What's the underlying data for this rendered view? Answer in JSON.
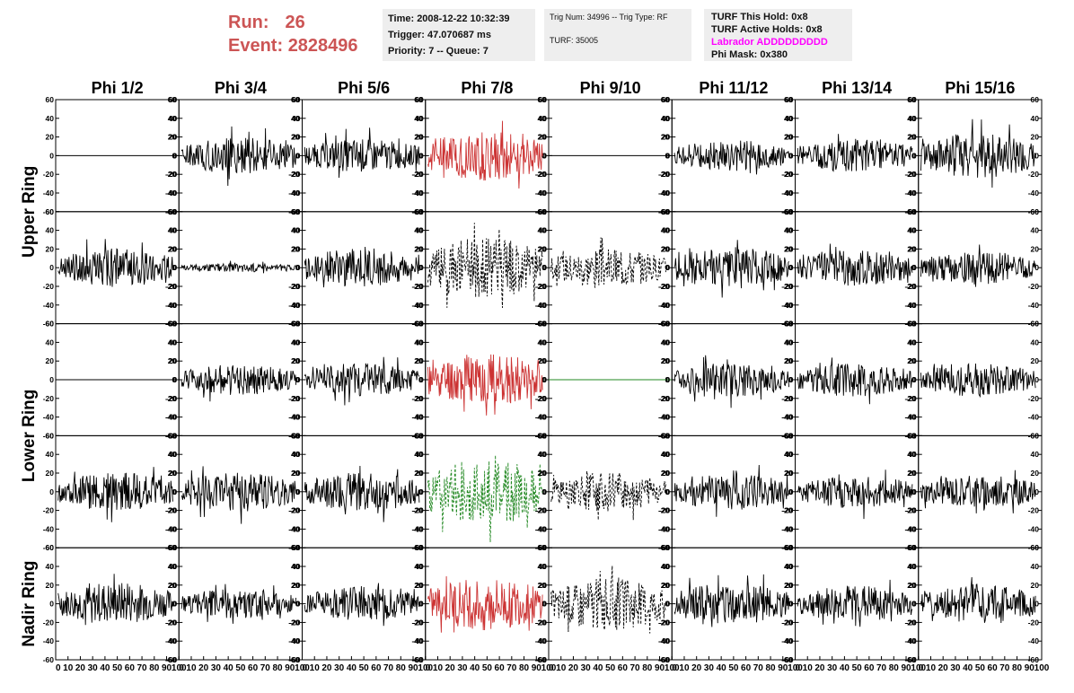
{
  "header": {
    "run_label": "Run:",
    "run_value": "26",
    "event_label": "Event:",
    "event_value": "2828496",
    "time": "Time: 2008-12-22 10:32:39",
    "trigger": "Trigger: 47.070687 ms",
    "priority": "Priority: 7 -- Queue: 7",
    "trig_num": "Trig Num: 34996 -- Trig Type: RF",
    "turf": "TURF: 35005",
    "turf_this_hold": "TURF This Hold: 0x8",
    "turf_active_holds": "TURF Active Holds: 0x8",
    "labrador": "Labrador ADDDDDDDDD",
    "phi_mask": "Phi Mask: 0x380"
  },
  "colors": {
    "header_red": "#cc5555",
    "labrador_magenta": "#ff00ff",
    "trace_black": "#000000",
    "trace_red": "#cc3333",
    "trace_green": "#228822",
    "box_bg": "#eeeeee"
  },
  "chart_data": {
    "type": "line",
    "layout": "grid",
    "columns": [
      "Phi 1/2",
      "Phi 3/4",
      "Phi 5/6",
      "Phi 7/8",
      "Phi 9/10",
      "Phi 11/12",
      "Phi 13/14",
      "Phi 15/16"
    ],
    "rows": [
      {
        "label": "Upper Ring",
        "sub_rows": 2
      },
      {
        "label": "Lower Ring",
        "sub_rows": 2
      },
      {
        "label": "Nadir Ring",
        "sub_rows": 1
      }
    ],
    "xlim": [
      0,
      100
    ],
    "ylim": [
      -60,
      60
    ],
    "x_tick_labels": [
      "0",
      "10",
      "20",
      "30",
      "40",
      "50",
      "60",
      "70",
      "80",
      "90",
      "100"
    ],
    "y_tick_labels": [
      "-60",
      "-40",
      "-20",
      "0",
      "20",
      "40",
      "60"
    ],
    "panels": [
      [
        {
          "style": "flat",
          "color": "black",
          "amp": 0
        },
        {
          "style": "solid",
          "color": "black",
          "amp": 13
        },
        {
          "style": "solid",
          "color": "black",
          "amp": 12
        },
        {
          "style": "solid",
          "color": "red",
          "amp": 18
        },
        {
          "style": "flat",
          "color": "black",
          "amp": 0
        },
        {
          "style": "solid",
          "color": "black",
          "amp": 11
        },
        {
          "style": "solid",
          "color": "black",
          "amp": 12
        },
        {
          "style": "solid",
          "color": "black",
          "amp": 16
        }
      ],
      [
        {
          "style": "solid",
          "color": "black",
          "amp": 14
        },
        {
          "style": "solid",
          "color": "black",
          "amp": 3
        },
        {
          "style": "solid",
          "color": "black",
          "amp": 14
        },
        {
          "style": "dashed",
          "color": "black",
          "amp": 22
        },
        {
          "style": "dashed",
          "color": "black",
          "amp": 14
        },
        {
          "style": "solid",
          "color": "black",
          "amp": 15
        },
        {
          "style": "solid",
          "color": "black",
          "amp": 13
        },
        {
          "style": "solid",
          "color": "black",
          "amp": 12
        }
      ],
      [
        {
          "style": "flat",
          "color": "black",
          "amp": 0
        },
        {
          "style": "solid",
          "color": "black",
          "amp": 11
        },
        {
          "style": "solid",
          "color": "black",
          "amp": 12
        },
        {
          "style": "solid",
          "color": "red",
          "amp": 19
        },
        {
          "style": "flat",
          "color": "green",
          "amp": 0
        },
        {
          "style": "solid",
          "color": "black",
          "amp": 12
        },
        {
          "style": "solid",
          "color": "black",
          "amp": 12
        },
        {
          "style": "solid",
          "color": "black",
          "amp": 12
        }
      ],
      [
        {
          "style": "solid",
          "color": "black",
          "amp": 14
        },
        {
          "style": "solid",
          "color": "black",
          "amp": 14
        },
        {
          "style": "solid",
          "color": "black",
          "amp": 14
        },
        {
          "style": "dashed",
          "color": "green",
          "amp": 24
        },
        {
          "style": "dashed",
          "color": "black",
          "amp": 14
        },
        {
          "style": "solid",
          "color": "black",
          "amp": 13
        },
        {
          "style": "solid",
          "color": "black",
          "amp": 12
        },
        {
          "style": "solid",
          "color": "black",
          "amp": 12
        }
      ],
      [
        {
          "style": "solid",
          "color": "black",
          "amp": 15
        },
        {
          "style": "solid",
          "color": "black",
          "amp": 11
        },
        {
          "style": "solid",
          "color": "black",
          "amp": 12
        },
        {
          "style": "solid",
          "color": "red",
          "amp": 19
        },
        {
          "style": "dashed",
          "color": "black",
          "amp": 19
        },
        {
          "style": "solid",
          "color": "black",
          "amp": 15
        },
        {
          "style": "solid",
          "color": "black",
          "amp": 13
        },
        {
          "style": "solid",
          "color": "black",
          "amp": 14
        }
      ]
    ]
  }
}
